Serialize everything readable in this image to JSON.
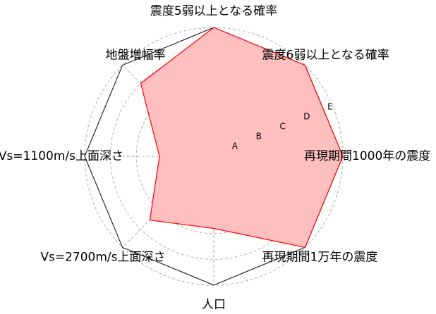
{
  "chart_data": {
    "type": "radar",
    "axes": [
      "震度5弱以上となる確率",
      "震度6弱以上となる確率",
      "再現期間1000年の震度",
      "再現期間1万年の震度",
      "人口",
      "Vs=2700m/s上面深さ",
      "Vs=1100m/s上面深さ",
      "地盤増幅率"
    ],
    "levels": [
      "A",
      "B",
      "C",
      "D",
      "E"
    ],
    "rlim": [
      0,
      5
    ],
    "grid": true,
    "series": [
      {
        "values": [
          5.0,
          5.0,
          5.0,
          5.0,
          2.8,
          3.5,
          2.1,
          4.0
        ]
      }
    ],
    "colors": {
      "line": "#ff0000",
      "fill": "#ffbfbf",
      "frame": "#000000",
      "grid": "#b0b0b0"
    }
  }
}
